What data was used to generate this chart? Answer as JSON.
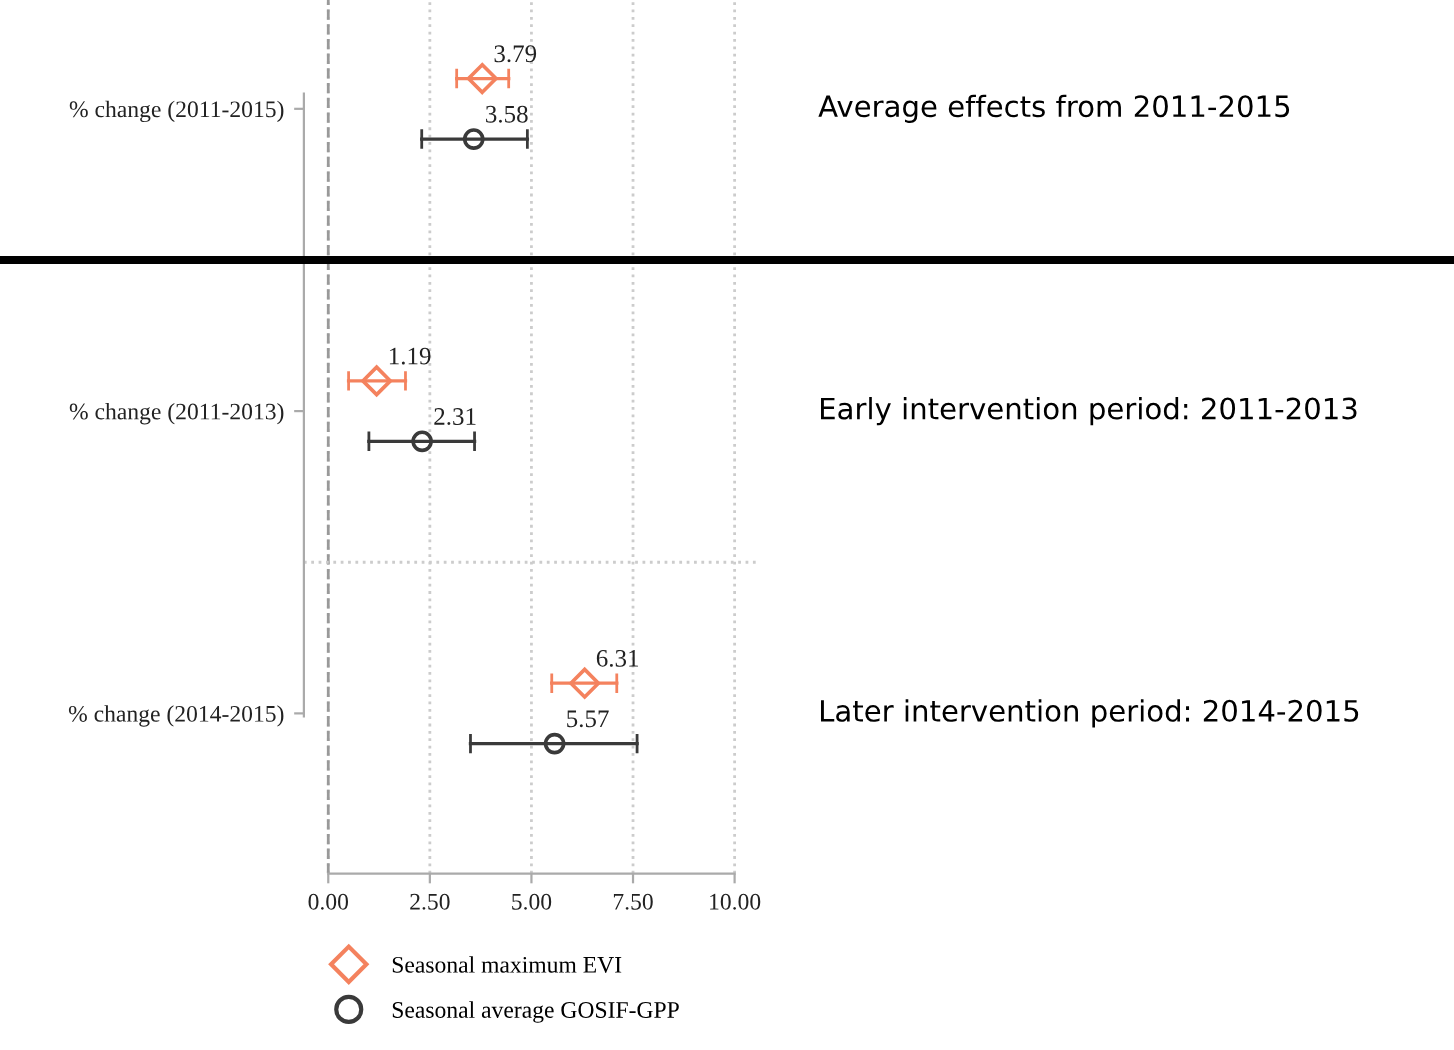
{
  "chart_data": {
    "type": "scatter",
    "orientation": "horizontal",
    "categories": [
      "% change (2011-2015)",
      "% change (2011-2013)",
      "% change (2014-2015)"
    ],
    "series": [
      {
        "name": "Seasonal maximum EVI",
        "color": "#f4825e",
        "marker": "diamond",
        "values": [
          3.79,
          1.19,
          6.31
        ],
        "errors": [
          [
            3.16,
            4.44
          ],
          [
            0.5,
            1.9
          ],
          [
            5.5,
            7.1
          ]
        ]
      },
      {
        "name": "Seasonal average GOSIF-GPP",
        "color": "#3a3a3a",
        "marker": "circle",
        "values": [
          3.58,
          2.31,
          5.57
        ],
        "errors": [
          [
            2.3,
            4.9
          ],
          [
            1.0,
            3.6
          ],
          [
            3.5,
            7.6
          ]
        ]
      }
    ],
    "xlim": [
      -0.6,
      10.6
    ],
    "xticks": [
      {
        "value": 0,
        "label": "0.00"
      },
      {
        "value": 2.5,
        "label": "2.50"
      },
      {
        "value": 5,
        "label": "5.00"
      },
      {
        "value": 7.5,
        "label": "7.50"
      },
      {
        "value": 10,
        "label": "10.00"
      }
    ],
    "ref_lines": [
      {
        "axis": "x",
        "value": 0,
        "color": "#999999",
        "line_style": "dashed"
      }
    ],
    "grid": "x",
    "legend": "bottom",
    "data_labels": true,
    "annotations": [
      "Average effects from 2011-2015",
      "Early intervention period: 2011-2013",
      "Later intervention period: 2014-2015"
    ]
  }
}
